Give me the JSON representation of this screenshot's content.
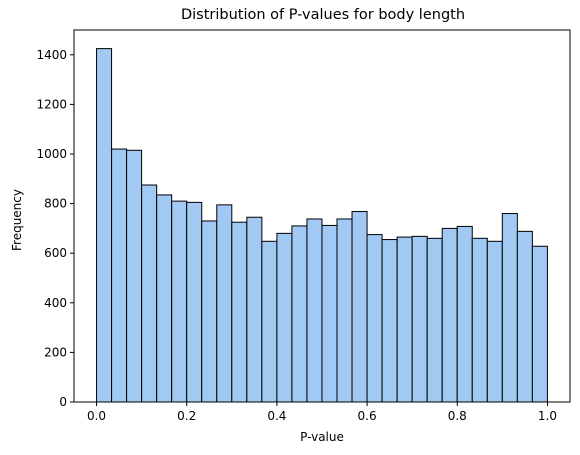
{
  "chart_data": {
    "type": "bar",
    "title": "Distribution of P-values for body length",
    "xlabel": "P-value",
    "ylabel": "Frequency",
    "bin_start": 0.0,
    "bin_width": 0.03333,
    "values": [
      1425,
      1020,
      1015,
      875,
      835,
      810,
      805,
      730,
      795,
      725,
      745,
      648,
      680,
      710,
      738,
      712,
      738,
      768,
      675,
      655,
      665,
      668,
      660,
      700,
      708,
      660,
      648,
      760,
      688,
      628
    ],
    "xlim": [
      -0.05,
      1.05
    ],
    "ylim": [
      0,
      1500
    ],
    "xticks": [
      "0.0",
      "0.2",
      "0.4",
      "0.6",
      "0.8",
      "1.0"
    ],
    "xtick_values": [
      0,
      0.2,
      0.4,
      0.6,
      0.8,
      1.0
    ],
    "yticks": [
      "0",
      "200",
      "400",
      "600",
      "800",
      "1000",
      "1200",
      "1400"
    ],
    "ytick_values": [
      0,
      200,
      400,
      600,
      800,
      1000,
      1200,
      1400
    ],
    "grid": false,
    "bar_color": "#a1c9f4",
    "edge_color": "#000000"
  }
}
